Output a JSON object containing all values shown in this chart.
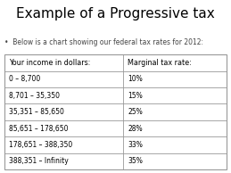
{
  "title": "Example of a Progressive tax",
  "subtitle": "•  Below is a chart showing our federal tax rates for 2012:",
  "col1_header": "Your income in dollars:",
  "col2_header": "Marginal tax rate:",
  "rows": [
    [
      "0 – 8,700",
      "10%"
    ],
    [
      "8,701 – 35,350",
      "15%"
    ],
    [
      "35,351 – 85,650",
      "25%"
    ],
    [
      "85,651 – 178,650",
      "28%"
    ],
    [
      "178,651 – 388,350",
      "33%"
    ],
    [
      "388,351 – Infinity",
      "35%"
    ]
  ],
  "bg_color": "#ffffff",
  "table_bg": "#ffffff",
  "title_fontsize": 11,
  "subtitle_fontsize": 5.5,
  "table_fontsize": 5.5,
  "header_fontsize": 5.8,
  "col_split": 0.535
}
